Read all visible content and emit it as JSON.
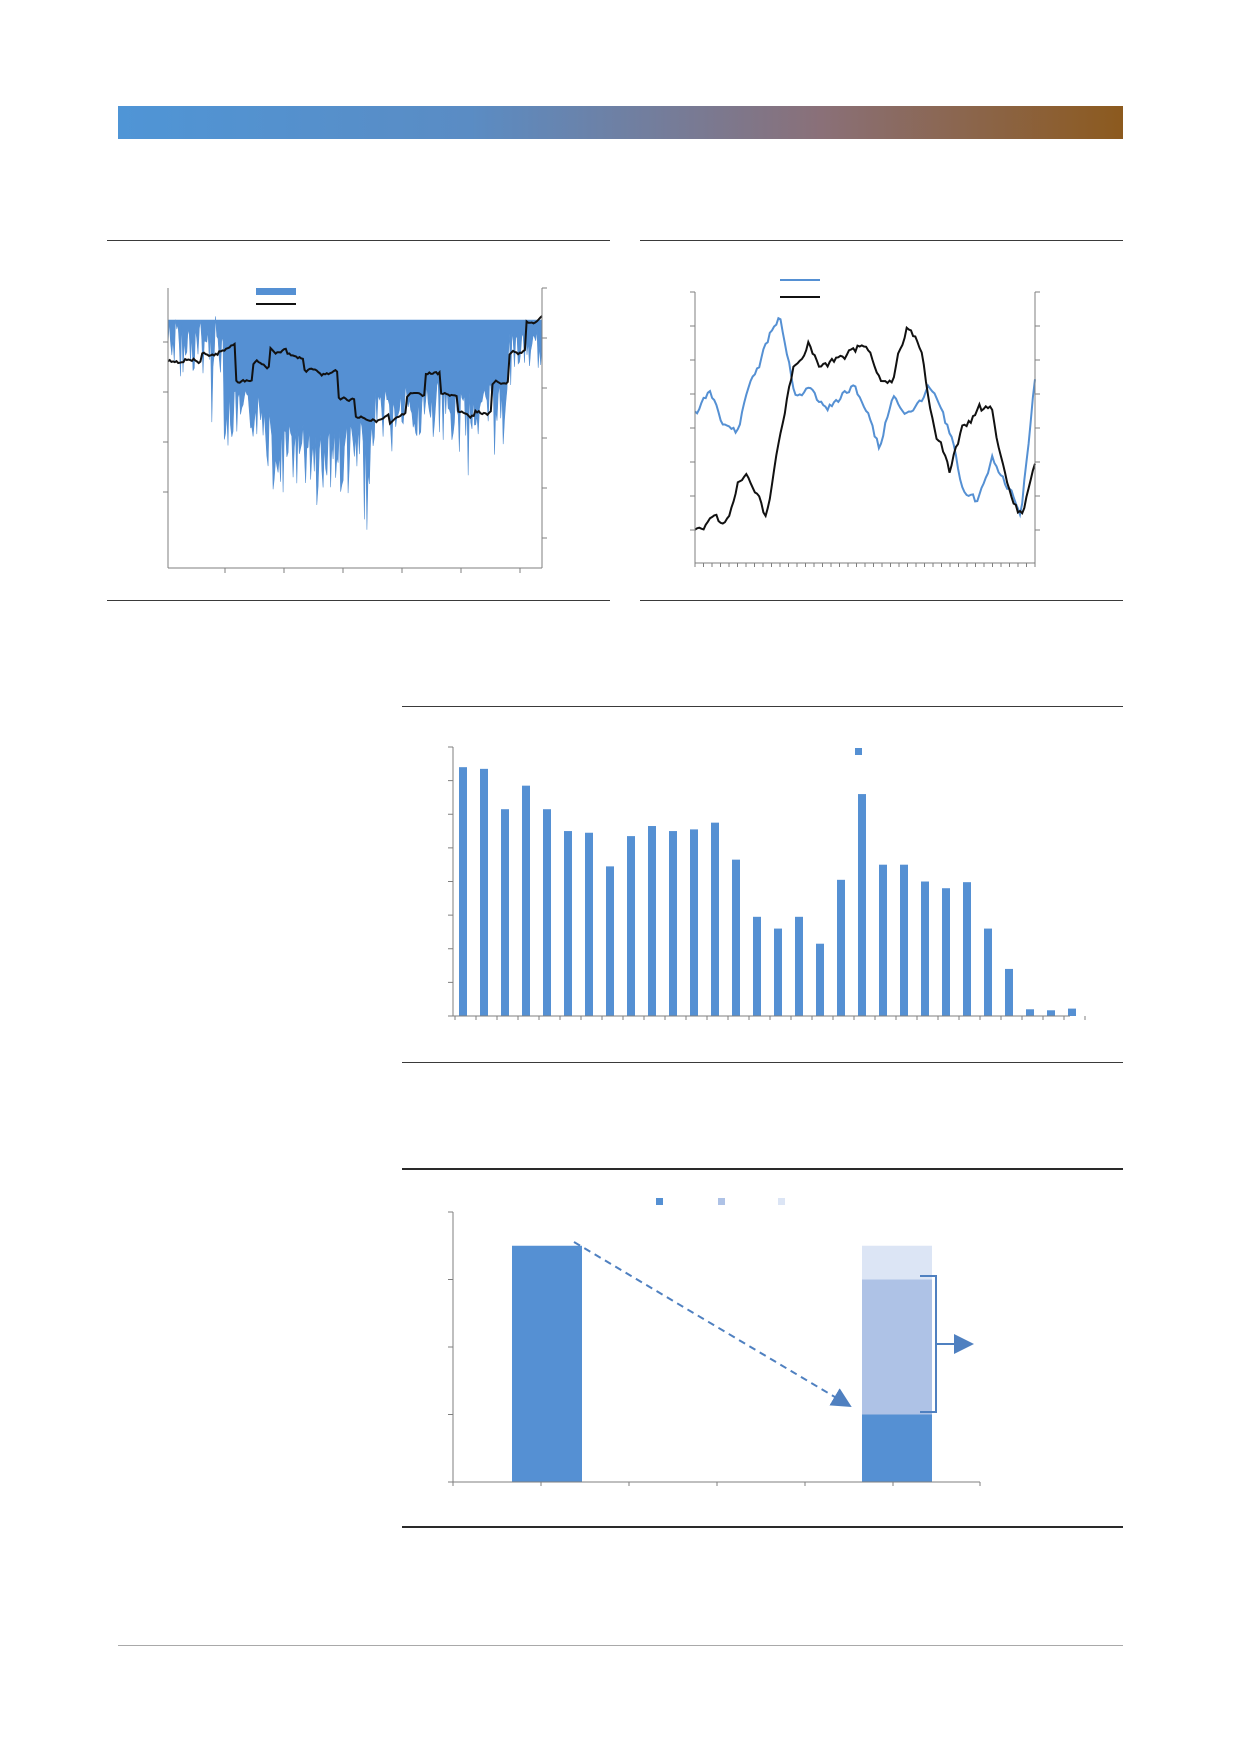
{
  "colors": {
    "accent_blue": "#5590d3",
    "light_blue": "#aec2e6",
    "pale_blue": "#dce5f5",
    "black": "#111111",
    "banner_start": "#4f95d6",
    "banner_end": "#8c5a1e"
  },
  "chart_data": [
    {
      "type": "area",
      "title": "",
      "legend_position": "top-left",
      "series": [
        {
          "name": "",
          "style": "area",
          "color": "#5590d3"
        },
        {
          "name": "",
          "style": "line",
          "color": "#111111"
        }
      ],
      "grid": false
    },
    {
      "type": "line",
      "title": "",
      "legend_position": "top-left",
      "series": [
        {
          "name": "",
          "style": "line",
          "color": "#5590d3"
        },
        {
          "name": "",
          "style": "line",
          "color": "#111111"
        }
      ],
      "grid": false
    },
    {
      "type": "bar",
      "title": "",
      "legend_position": "top-right",
      "categories_count": 30,
      "ylim": [
        0,
        8
      ],
      "values": [
        7.4,
        7.35,
        6.15,
        6.85,
        6.15,
        5.5,
        5.45,
        4.45,
        5.35,
        5.65,
        5.5,
        5.55,
        5.75,
        4.65,
        2.95,
        2.6,
        2.95,
        2.15,
        4.05,
        6.6,
        4.5,
        4.5,
        4.0,
        3.8,
        3.98,
        2.6,
        1.4,
        0.2,
        0.17,
        0.22
      ],
      "grid": false
    },
    {
      "type": "bar",
      "title": "",
      "legend_position": "top-center",
      "ylim": [
        0,
        4
      ],
      "series": [
        {
          "name": "",
          "color": "#5590d3",
          "values": [
            3.5,
            1.0
          ]
        },
        {
          "name": "",
          "color": "#aec2e6",
          "values": [
            0,
            2.0
          ]
        },
        {
          "name": "",
          "color": "#dce5f5",
          "values": [
            0,
            0.5
          ]
        }
      ],
      "annotations": [
        "dashed-arrow-from-bar1-to-bar2",
        "bracket-arrow-right"
      ],
      "grid": false
    }
  ]
}
